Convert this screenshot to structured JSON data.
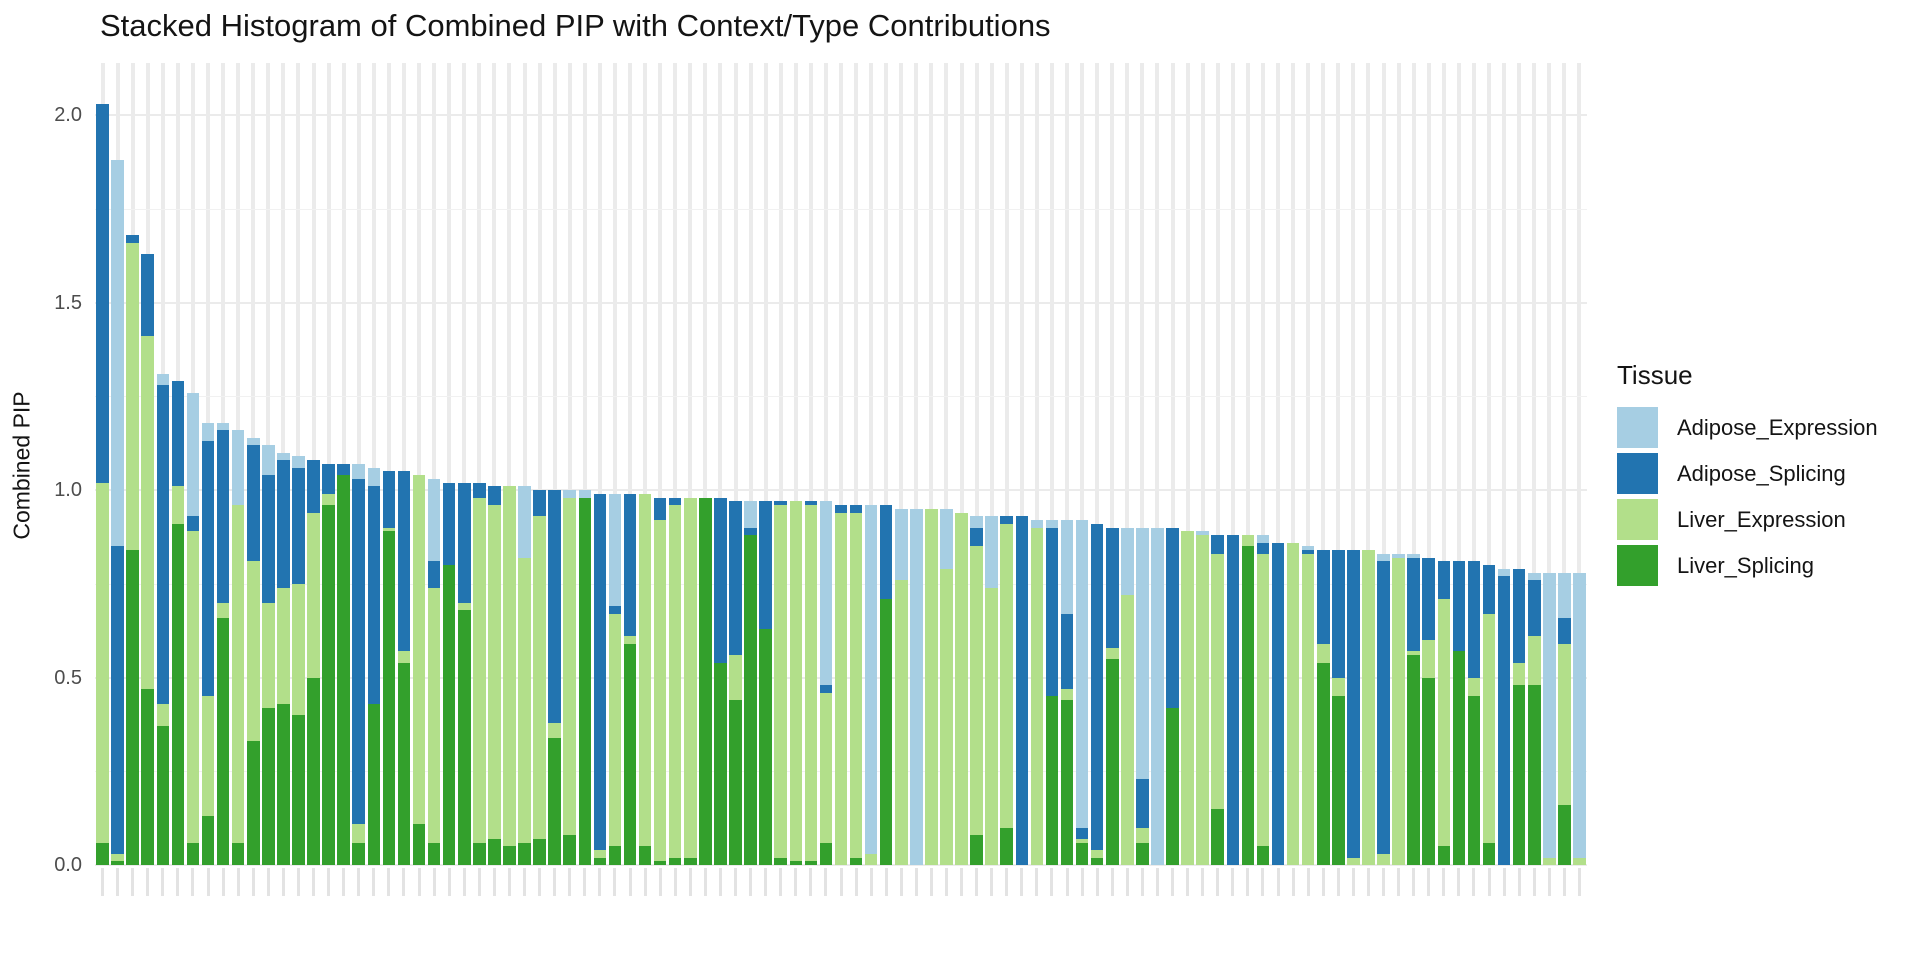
{
  "title": "Stacked Histogram of Combined PIP with Context/Type Contributions",
  "y_axis": {
    "label": "Combined PIP",
    "ticks": [
      {
        "value": 0.0,
        "label": "0.0"
      },
      {
        "value": 0.5,
        "label": "0.5"
      },
      {
        "value": 1.0,
        "label": "1.0"
      },
      {
        "value": 1.5,
        "label": "1.5"
      },
      {
        "value": 2.0,
        "label": "2.0"
      }
    ]
  },
  "legend": {
    "title": "Tissue",
    "entries": [
      {
        "label": "Adipose_Expression",
        "color": "#a6cee3"
      },
      {
        "label": "Adipose_Splicing",
        "color": "#2274b0"
      },
      {
        "label": "Liver_Expression",
        "color": "#b2df8a"
      },
      {
        "label": "Liver_Splicing",
        "color": "#33a02c"
      }
    ]
  },
  "colors": {
    "background": "#ffffff",
    "grid_major": "#ebebeb",
    "grid_minor": "#f1f1f1",
    "axis_tick_text": "#4d4d4d",
    "title_text": "#141414"
  },
  "chart_data": {
    "type": "bar",
    "stacked": true,
    "title": "Stacked Histogram of Combined PIP with Context/Type Contributions",
    "xlabel": "",
    "ylabel": "Combined PIP",
    "ylim": [
      0,
      2.05
    ],
    "grid": true,
    "legend_position": "right",
    "x_tick_labels_visible": false,
    "n_bars": 99,
    "bars_sorted_by": "descending total Combined PIP (2.03 down to 0.78)",
    "stack_order_bottom_to_top": [
      "Liver_Splicing",
      "Liver_Expression",
      "Adipose_Splicing",
      "Adipose_Expression"
    ],
    "series": [
      {
        "name": "Adipose_Expression",
        "color": "#a6cee3",
        "values": [
          0,
          1.03,
          0,
          0,
          0.03,
          0,
          0.33,
          0.05,
          0.02,
          0.2,
          0.02,
          0.08,
          0.02,
          0.03,
          0,
          0,
          0,
          0.04,
          0.05,
          0,
          0,
          0,
          0.22,
          0,
          0,
          0,
          0,
          0,
          0.19,
          0,
          0,
          0.02,
          0.02,
          0,
          0.3,
          0,
          0,
          0,
          0,
          0,
          0,
          0,
          0,
          0.07,
          0,
          0,
          0,
          0,
          0.49,
          0,
          0,
          0.93,
          0,
          0.19,
          0.95,
          0,
          0.16,
          0,
          0.03,
          0.19,
          0,
          0,
          0.02,
          0.02,
          0.25,
          0.82,
          0,
          0,
          0.18,
          0.67,
          0.9,
          0,
          0,
          0.01,
          0,
          0,
          0,
          0.02,
          0,
          0,
          0.01,
          0,
          0,
          0,
          0,
          0.02,
          0.01,
          0.01,
          0,
          0,
          0,
          0,
          0,
          0.02,
          0,
          0.02,
          0.76,
          0.12,
          0.76
        ]
      },
      {
        "name": "Adipose_Splicing",
        "color": "#2274b0",
        "values": [
          1.01,
          0.82,
          0.02,
          0.22,
          0.85,
          0.28,
          0.04,
          0.68,
          0.46,
          0,
          0.31,
          0.34,
          0.34,
          0.31,
          0.14,
          0.08,
          0.03,
          0.92,
          0.58,
          0.15,
          0.48,
          0,
          0.07,
          0.22,
          0.32,
          0.04,
          0.05,
          0,
          0,
          0.07,
          0.62,
          0,
          0,
          0.95,
          0.02,
          0.38,
          0,
          0.06,
          0.02,
          0,
          0,
          0.44,
          0.41,
          0.02,
          0.34,
          0.01,
          0,
          0.01,
          0.02,
          0.02,
          0.02,
          0,
          0.25,
          0,
          0,
          0,
          0,
          0,
          0.05,
          0,
          0.02,
          0.93,
          0,
          0.45,
          0.2,
          0.03,
          0.87,
          0.32,
          0,
          0.13,
          0,
          0.48,
          0,
          0,
          0.05,
          0.88,
          0,
          0.03,
          0.86,
          0,
          0.01,
          0.25,
          0.34,
          0.82,
          0,
          0.78,
          0,
          0.25,
          0.22,
          0.1,
          0.24,
          0.31,
          0.13,
          0.77,
          0.25,
          0.15,
          0,
          0.07,
          0
        ]
      },
      {
        "name": "Liver_Expression",
        "color": "#b2df8a",
        "values": [
          0.96,
          0.02,
          0.82,
          0.94,
          0.06,
          0.1,
          0.83,
          0.32,
          0.04,
          0.9,
          0.48,
          0.28,
          0.31,
          0.35,
          0.44,
          0.03,
          0,
          0.05,
          0,
          0.01,
          0.03,
          0.93,
          0.68,
          0,
          0.02,
          0.92,
          0.89,
          0.96,
          0.76,
          0.86,
          0.04,
          0.9,
          0,
          0.02,
          0.62,
          0.02,
          0.94,
          0.91,
          0.94,
          0.96,
          0,
          0,
          0.12,
          0,
          0,
          0.94,
          0.96,
          0.95,
          0.4,
          0.94,
          0.92,
          0.03,
          0,
          0.76,
          0,
          0.95,
          0.79,
          0.94,
          0.77,
          0.74,
          0.81,
          0,
          0.9,
          0,
          0.03,
          0.01,
          0.02,
          0.03,
          0.72,
          0.04,
          0,
          0,
          0.89,
          0.88,
          0.68,
          0,
          0.03,
          0.78,
          0,
          0.86,
          0.83,
          0.05,
          0.05,
          0.02,
          0.84,
          0.03,
          0.82,
          0.01,
          0.1,
          0.66,
          0,
          0.05,
          0.61,
          0,
          0.06,
          0.13,
          0.02,
          0.43,
          0.02
        ]
      },
      {
        "name": "Liver_Splicing",
        "color": "#33a02c",
        "values": [
          0.06,
          0.01,
          0.84,
          0.47,
          0.37,
          0.91,
          0.06,
          0.13,
          0.66,
          0.06,
          0.33,
          0.42,
          0.43,
          0.4,
          0.5,
          0.96,
          1.04,
          0.06,
          0.43,
          0.89,
          0.54,
          0.11,
          0.06,
          0.8,
          0.68,
          0.06,
          0.07,
          0.05,
          0.06,
          0.07,
          0.34,
          0.08,
          0.98,
          0.02,
          0.05,
          0.59,
          0.05,
          0.01,
          0.02,
          0.02,
          0.98,
          0.54,
          0.44,
          0.88,
          0.63,
          0.02,
          0.01,
          0.01,
          0.06,
          0,
          0.02,
          0,
          0.71,
          0,
          0,
          0,
          0,
          0,
          0.08,
          0,
          0.1,
          0,
          0,
          0.45,
          0.44,
          0.06,
          0.02,
          0.55,
          0,
          0.06,
          0,
          0.42,
          0,
          0,
          0.15,
          0,
          0.85,
          0.05,
          0,
          0,
          0,
          0.54,
          0.45,
          0,
          0,
          0,
          0,
          0.56,
          0.5,
          0.05,
          0.57,
          0.45,
          0.06,
          0,
          0.48,
          0.48,
          0,
          0.16,
          0
        ]
      }
    ]
  }
}
